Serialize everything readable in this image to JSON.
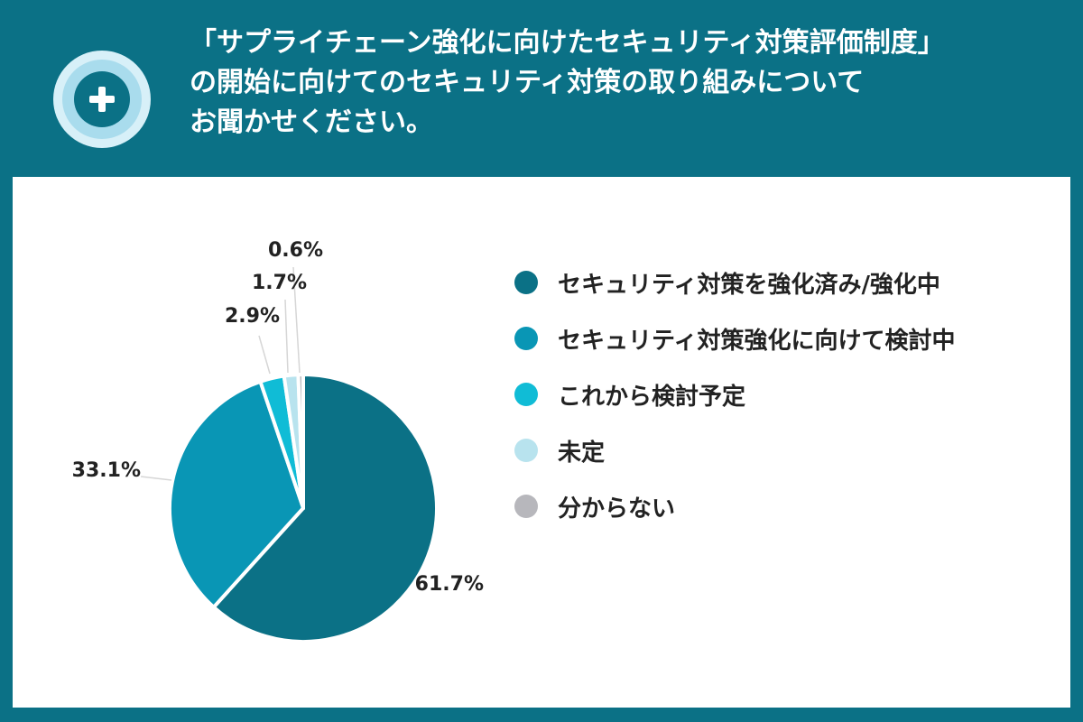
{
  "header": {
    "question_lines": [
      "「サプライチェーン強化に向けたセキュリティ対策評価制度」",
      "の開始に向けてのセキュリティ対策の取り組みについて",
      "お聞かせください。"
    ],
    "badge_icon": "plus-icon"
  },
  "colors": {
    "background": "#0b7186",
    "panel": "#ffffff",
    "text": "#222222"
  },
  "chart_data": {
    "type": "pie",
    "title": "",
    "slices": [
      {
        "label": "セキュリティ対策を強化済み/強化中",
        "value": 61.7,
        "display": "61.7%",
        "color": "#0b7186"
      },
      {
        "label": "セキュリティ対策強化に向けて検討中",
        "value": 33.1,
        "display": "33.1%",
        "color": "#0996b5"
      },
      {
        "label": "これから検討予定",
        "value": 2.9,
        "display": "2.9%",
        "color": "#10bcd6"
      },
      {
        "label": "未定",
        "value": 1.7,
        "display": "1.7%",
        "color": "#b8e3ee"
      },
      {
        "label": "分からない",
        "value": 0.6,
        "display": "0.6%",
        "color": "#b7b7bc"
      }
    ],
    "legend_position": "right",
    "start_angle": "12 o'clock",
    "direction": "clockwise"
  }
}
